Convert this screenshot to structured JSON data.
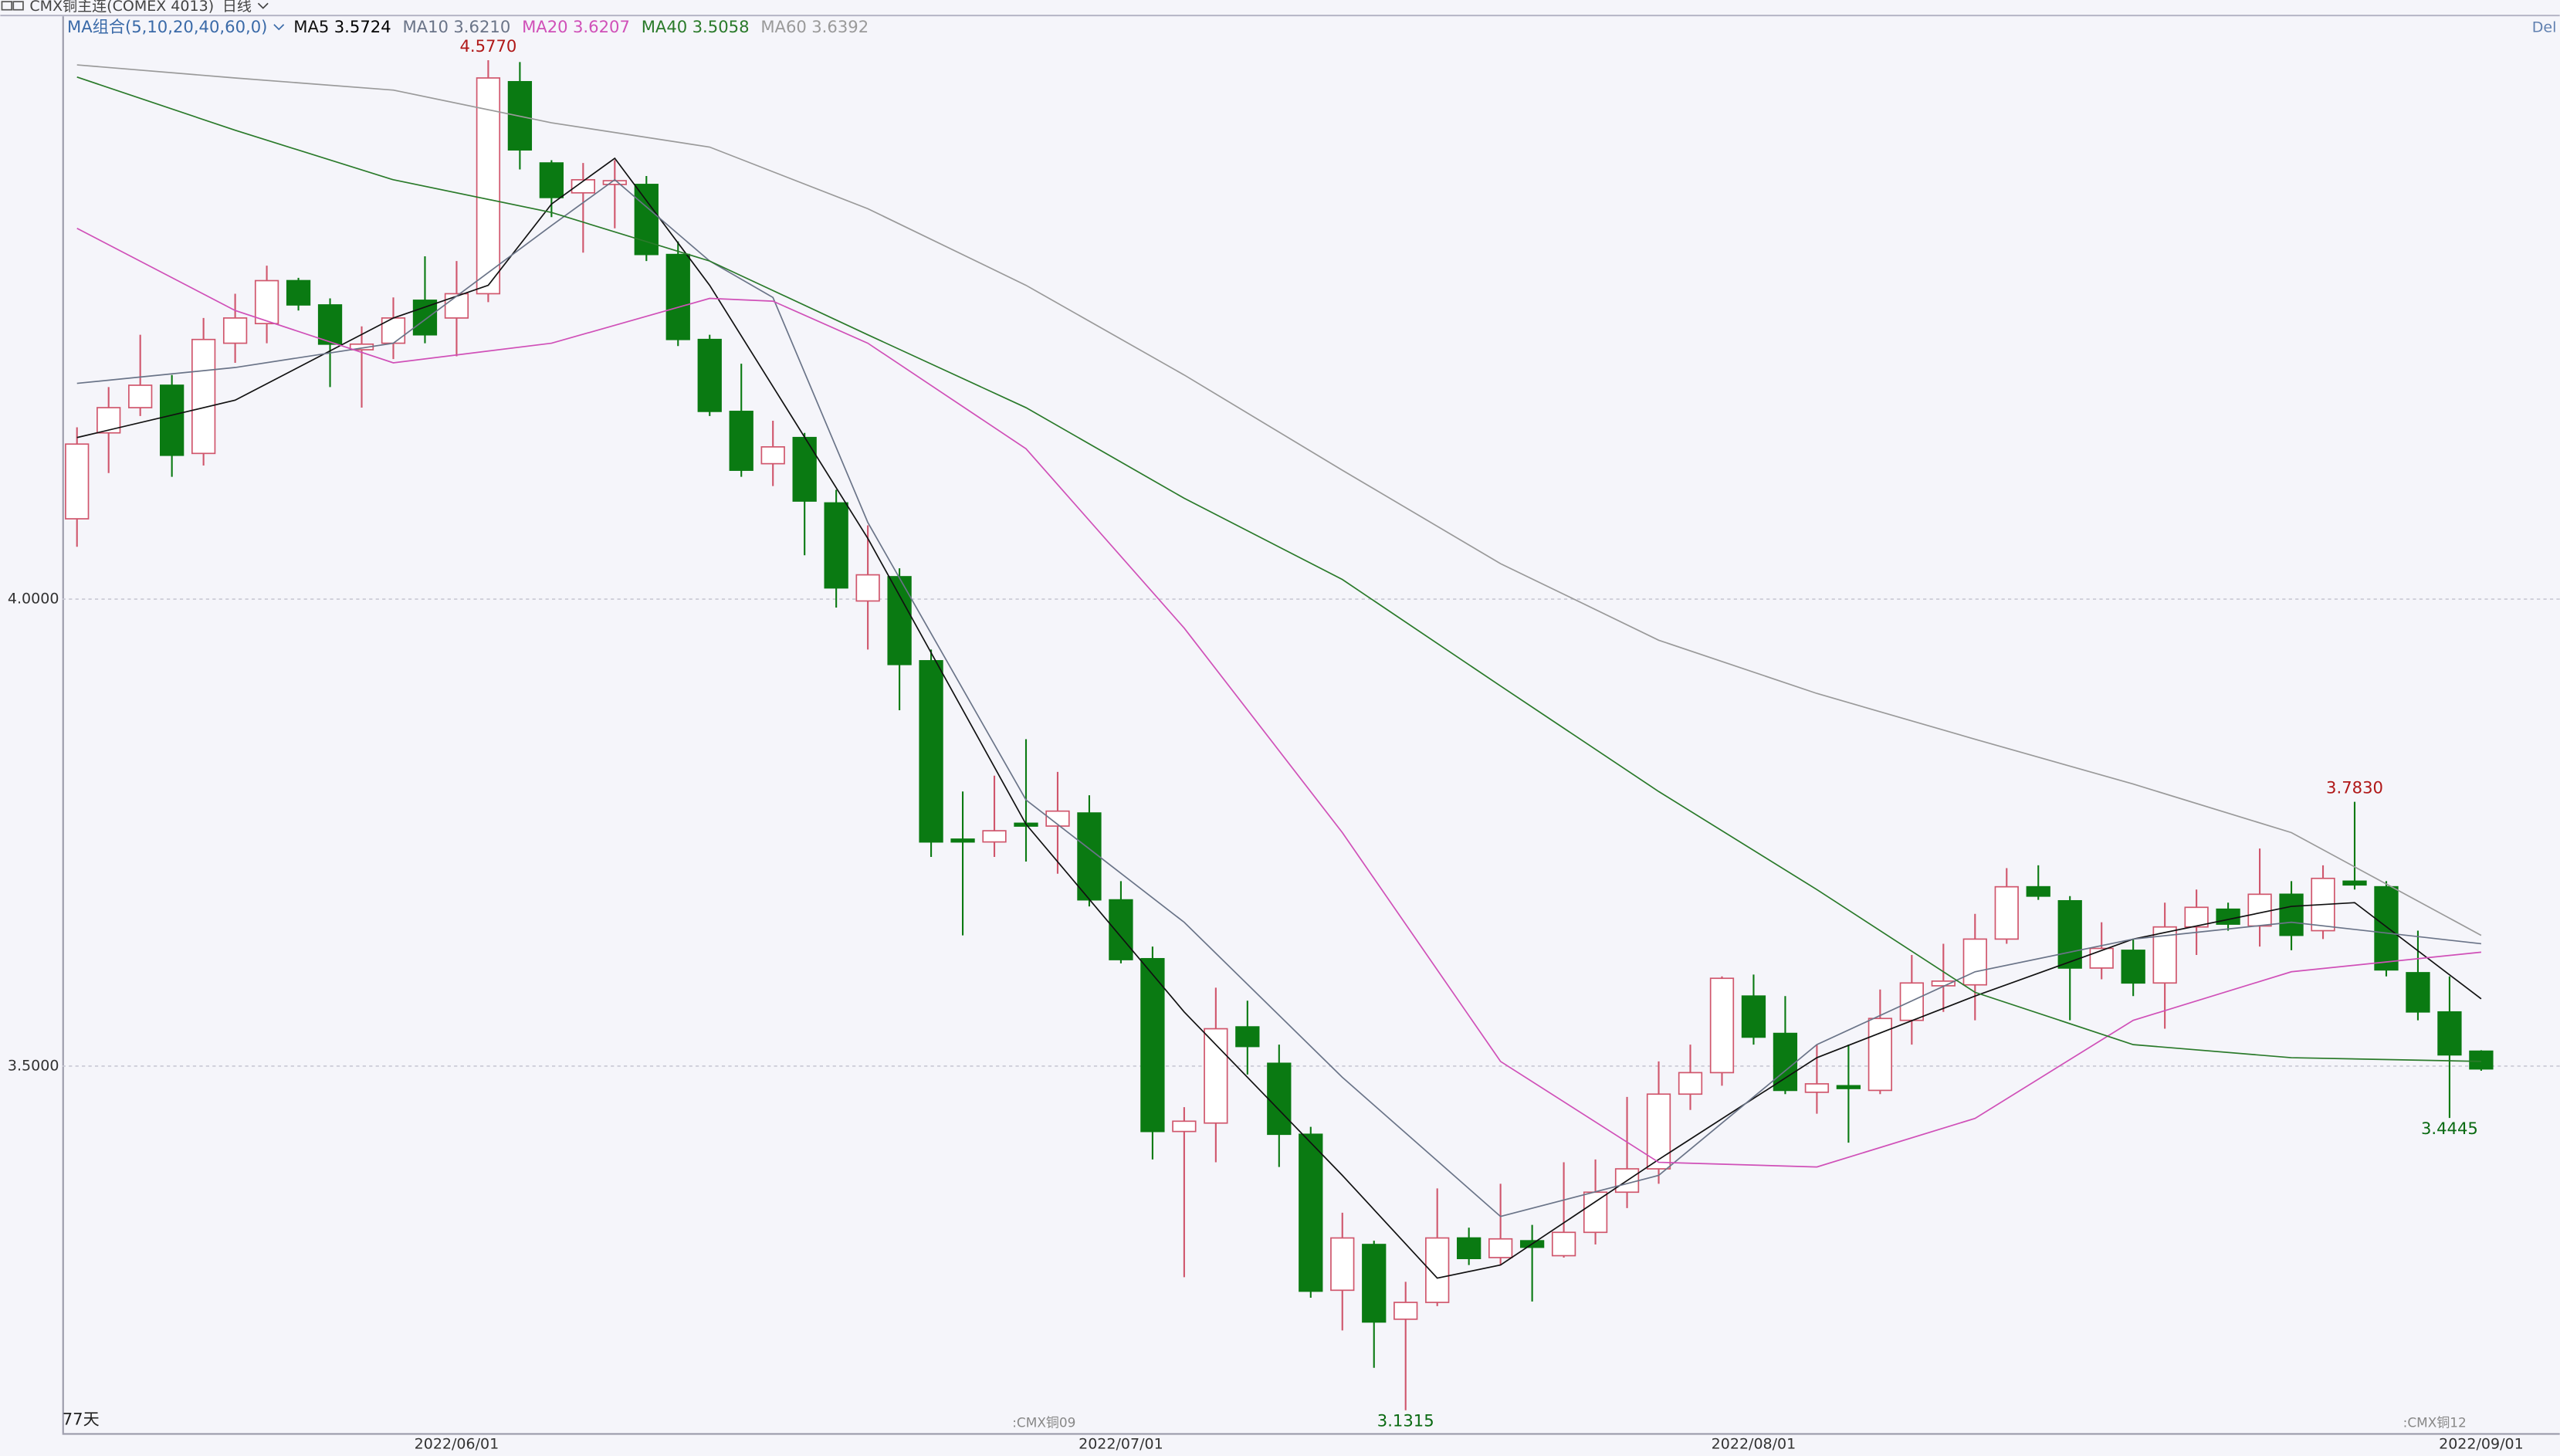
{
  "header": {
    "instrument": "CMX铜主连(COMEX 4013)",
    "period": "日线",
    "corner": "Del"
  },
  "chart_data": {
    "type": "candlestick",
    "categories": [
      null,
      null,
      null,
      null,
      null,
      null,
      null,
      null,
      null,
      null,
      null,
      null,
      "2022/06/01",
      null,
      null,
      null,
      null,
      null,
      null,
      null,
      null,
      null,
      null,
      null,
      null,
      null,
      null,
      null,
      null,
      null,
      null,
      null,
      null,
      "2022/07/01",
      null,
      null,
      null,
      null,
      null,
      null,
      null,
      null,
      null,
      null,
      null,
      null,
      null,
      null,
      null,
      null,
      null,
      null,
      null,
      "2022/08/01",
      null,
      null,
      null,
      null,
      null,
      null,
      null,
      null,
      null,
      null,
      null,
      null,
      null,
      null,
      null,
      null,
      null,
      null,
      null,
      null,
      null,
      null,
      "2022/09/01"
    ],
    "open": [
      4.086,
      4.178,
      4.205,
      4.229,
      4.156,
      4.274,
      4.295,
      4.341,
      4.315,
      4.267,
      4.274,
      4.32,
      4.301,
      4.327,
      4.554,
      4.467,
      4.435,
      4.444,
      4.444,
      4.369,
      4.278,
      4.201,
      4.145,
      4.173,
      4.103,
      3.998,
      4.024,
      3.934,
      3.743,
      3.74,
      3.76,
      3.757,
      3.771,
      3.678,
      3.615,
      3.43,
      3.439,
      3.542,
      3.503,
      3.427,
      3.26,
      3.309,
      3.229,
      3.247,
      3.316,
      3.295,
      3.313,
      3.297,
      3.322,
      3.365,
      3.39,
      3.47,
      3.493,
      3.575,
      3.535,
      3.472,
      3.479,
      3.474,
      3.549,
      3.586,
      3.587,
      3.636,
      3.692,
      3.677,
      3.605,
      3.624,
      3.589,
      3.649,
      3.668,
      3.65,
      3.684,
      3.645,
      3.698,
      3.692,
      3.6,
      3.558,
      3.516
    ],
    "close": [
      4.166,
      4.205,
      4.229,
      4.154,
      4.278,
      4.301,
      4.341,
      4.315,
      4.273,
      4.273,
      4.301,
      4.283,
      4.327,
      4.558,
      4.481,
      4.43,
      4.449,
      4.448,
      4.369,
      4.278,
      4.201,
      4.138,
      4.163,
      4.105,
      4.012,
      4.026,
      3.93,
      3.74,
      3.74,
      3.752,
      3.757,
      3.773,
      3.678,
      3.614,
      3.43,
      3.441,
      3.54,
      3.521,
      3.427,
      3.259,
      3.316,
      3.226,
      3.247,
      3.316,
      3.294,
      3.315,
      3.306,
      3.322,
      3.365,
      3.39,
      3.47,
      3.493,
      3.594,
      3.531,
      3.474,
      3.481,
      3.476,
      3.551,
      3.589,
      3.591,
      3.636,
      3.692,
      3.682,
      3.605,
      3.626,
      3.589,
      3.649,
      3.67,
      3.652,
      3.684,
      3.64,
      3.701,
      3.694,
      3.603,
      3.558,
      3.512,
      3.497
    ],
    "high": [
      4.184,
      4.227,
      4.283,
      4.24,
      4.301,
      4.327,
      4.357,
      4.344,
      4.322,
      4.292,
      4.323,
      4.367,
      4.362,
      4.577,
      4.575,
      4.47,
      4.467,
      4.47,
      4.453,
      4.383,
      4.283,
      4.252,
      4.191,
      4.178,
      4.117,
      4.079,
      4.033,
      3.946,
      3.794,
      3.811,
      3.85,
      3.815,
      3.79,
      3.698,
      3.628,
      3.456,
      3.584,
      3.57,
      3.523,
      3.435,
      3.343,
      3.313,
      3.269,
      3.369,
      3.327,
      3.374,
      3.33,
      3.397,
      3.4,
      3.467,
      3.505,
      3.523,
      3.596,
      3.598,
      3.575,
      3.523,
      3.523,
      3.582,
      3.619,
      3.631,
      3.663,
      3.712,
      3.715,
      3.682,
      3.654,
      3.636,
      3.675,
      3.689,
      3.675,
      3.733,
      3.698,
      3.715,
      3.783,
      3.698,
      3.645,
      3.596,
      3.517
    ],
    "low": [
      4.056,
      4.135,
      4.196,
      4.131,
      4.143,
      4.253,
      4.274,
      4.309,
      4.227,
      4.205,
      4.257,
      4.274,
      4.26,
      4.318,
      4.46,
      4.409,
      4.371,
      4.397,
      4.362,
      4.271,
      4.196,
      4.131,
      4.121,
      4.047,
      3.991,
      3.946,
      3.881,
      3.724,
      3.64,
      3.724,
      3.719,
      3.706,
      3.671,
      3.61,
      3.4,
      3.274,
      3.397,
      3.491,
      3.392,
      3.252,
      3.217,
      3.177,
      3.1315,
      3.243,
      3.287,
      3.287,
      3.248,
      3.295,
      3.309,
      3.348,
      3.374,
      3.453,
      3.479,
      3.523,
      3.47,
      3.449,
      3.418,
      3.47,
      3.523,
      3.558,
      3.549,
      3.631,
      3.678,
      3.549,
      3.593,
      3.575,
      3.54,
      3.619,
      3.645,
      3.628,
      3.624,
      3.636,
      3.689,
      3.596,
      3.549,
      3.4445,
      3.495
    ],
    "ylim": [
      3.107,
      4.624
    ],
    "yticks": [
      {
        "value": 4,
        "label": "4.0000"
      },
      {
        "value": 3.5,
        "label": "3.5000"
      }
    ],
    "grid": true,
    "up_color": "#d0566c",
    "down_color": "#0a7a12",
    "ma_legend": "MA组合(5,10,20,40,60,0)",
    "series": [
      {
        "name": "MA5",
        "last": 3.5724,
        "color": "#111111",
        "x": [
          0,
          5,
          10,
          13,
          15,
          17,
          20,
          25,
          30,
          35,
          40,
          43,
          45,
          50,
          55,
          60,
          65,
          70,
          72,
          76
        ],
        "values": [
          4.173,
          4.213,
          4.301,
          4.336,
          4.423,
          4.472,
          4.336,
          4.065,
          3.759,
          3.558,
          3.383,
          3.273,
          3.287,
          3.4,
          3.509,
          3.575,
          3.636,
          3.671,
          3.675,
          3.572
        ]
      },
      {
        "name": "MA10",
        "last": {
          "value": 3.621,
          "label": "3.6210"
        },
        "color": "#6a7488",
        "x": [
          0,
          5,
          10,
          15,
          17,
          20,
          22,
          25,
          30,
          35,
          40,
          45,
          50,
          55,
          60,
          65,
          70,
          76
        ],
        "values": [
          4.231,
          4.248,
          4.274,
          4.4,
          4.449,
          4.362,
          4.323,
          4.082,
          3.785,
          3.654,
          3.488,
          3.339,
          3.383,
          3.523,
          3.601,
          3.636,
          3.654,
          3.631
        ]
      },
      {
        "name": "MA20",
        "last": 3.6207,
        "color": "#d050b8",
        "x": [
          0,
          5,
          10,
          15,
          20,
          22,
          25,
          30,
          35,
          40,
          45,
          50,
          55,
          60,
          65,
          70,
          76
        ],
        "values": [
          4.397,
          4.309,
          4.253,
          4.274,
          4.322,
          4.319,
          4.274,
          4.161,
          3.969,
          3.75,
          3.505,
          3.397,
          3.392,
          3.444,
          3.549,
          3.601,
          3.622
        ]
      },
      {
        "name": "MA40",
        "last": 3.5058,
        "color": "#2a7a2a",
        "x": [
          0,
          5,
          10,
          15,
          20,
          25,
          30,
          35,
          40,
          45,
          50,
          55,
          60,
          65,
          70,
          76
        ],
        "values": [
          4.559,
          4.502,
          4.449,
          4.414,
          4.362,
          4.283,
          4.205,
          4.108,
          4.021,
          3.907,
          3.794,
          3.689,
          3.579,
          3.523,
          3.509,
          3.505
        ]
      },
      {
        "name": "MA60",
        "last": 3.6392,
        "color": "#9a9a9a",
        "x": [
          0,
          5,
          10,
          15,
          20,
          25,
          30,
          35,
          40,
          45,
          50,
          55,
          60,
          65,
          70,
          76
        ],
        "values": [
          4.572,
          4.558,
          4.545,
          4.51,
          4.484,
          4.418,
          4.336,
          4.24,
          4.138,
          4.038,
          3.956,
          3.899,
          3.85,
          3.802,
          3.75,
          3.64
        ]
      }
    ],
    "annotations": [
      {
        "x": 13,
        "value": 4.577,
        "label": "4.5770"
      },
      {
        "x": 72,
        "value": 3.783,
        "label": "3.7830"
      },
      {
        "x": 42,
        "value": 3.1315
      },
      {
        "x": 75,
        "value": 3.4445
      }
    ],
    "notes": [
      "77天",
      ":CMX铜09",
      ":CMX铜12"
    ]
  }
}
